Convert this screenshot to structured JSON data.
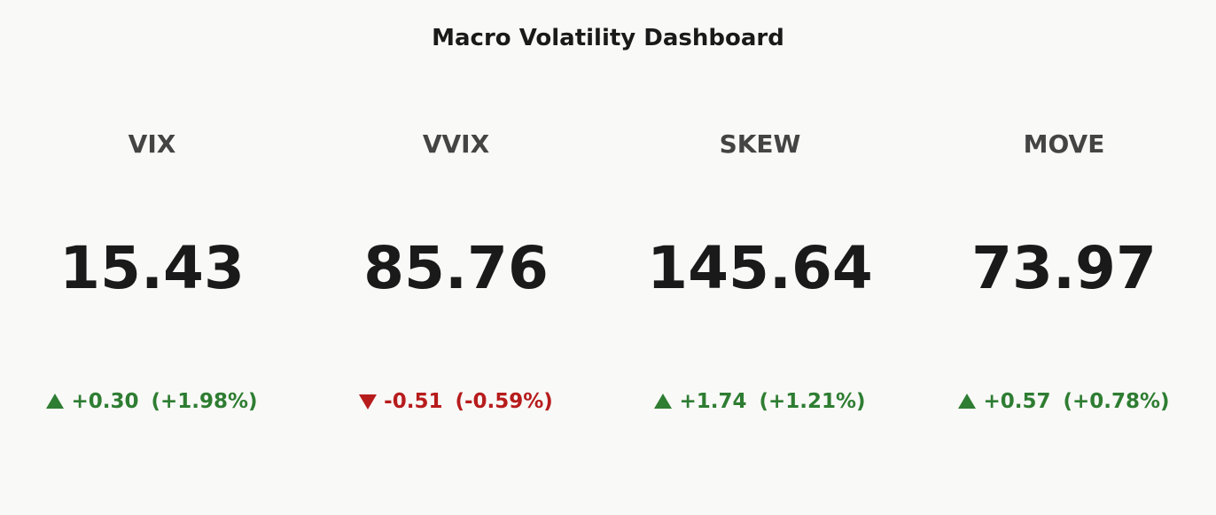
{
  "header": {
    "title": "Macro Volatility Dashboard"
  },
  "cards": [
    {
      "label": "VIX",
      "value": "15.43",
      "change": "+0.30",
      "change_pct": "(+1.98%)",
      "color": "#2e7d32"
    },
    {
      "label": "VVIX",
      "value": "85.76",
      "change": "-0.51",
      "change_pct": "(-0.59%)",
      "color": "#b71c1c"
    },
    {
      "label": "SKEW",
      "value": "145.64",
      "change": "+1.74",
      "change_pct": "(+1.21%)",
      "color": "#2e7d32"
    },
    {
      "label": "MOVE",
      "value": "73.97",
      "change": "+0.57",
      "change_pct": "(+0.78%)",
      "color": "#2e7d32"
    }
  ]
}
